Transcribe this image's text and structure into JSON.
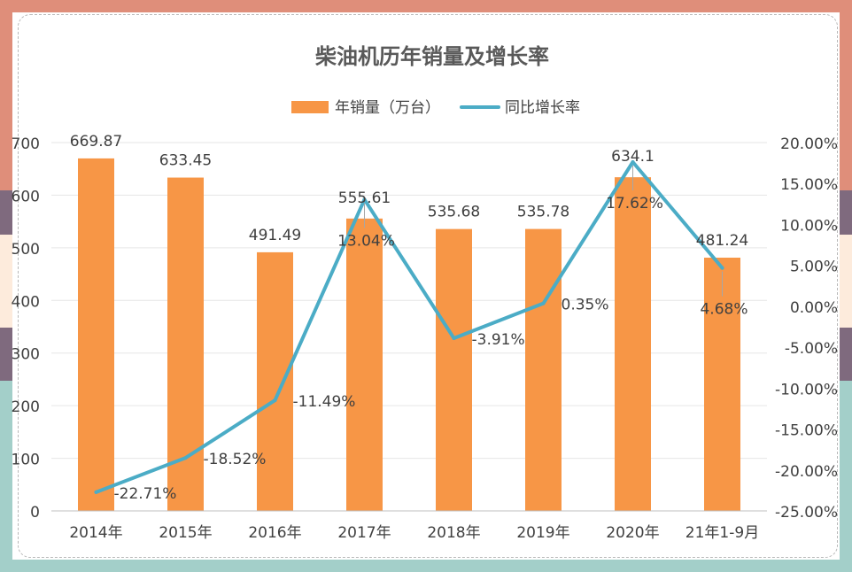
{
  "frame": {
    "top_color": "#DF8E7A",
    "bottom_color": "#A3CFC9",
    "side_colors": [
      "#DF8E7A",
      "#7F6A7E",
      "#FDEBDC",
      "#7F6A7E",
      "#A3CFC9"
    ]
  },
  "chart_data": {
    "type": "bar",
    "title": "柴油机历年销量及增长率",
    "categories": [
      "2014年",
      "2015年",
      "2016年",
      "2017年",
      "2018年",
      "2019年",
      "2020年",
      "21年1-9月"
    ],
    "series": [
      {
        "name": "年销量（万台）",
        "type": "bar",
        "axis": "left",
        "color": "#F79646",
        "values": [
          669.87,
          633.45,
          491.49,
          555.61,
          535.68,
          535.78,
          634.1,
          481.24
        ],
        "labels": [
          "669.87",
          "633.45",
          "491.49",
          "555.61",
          "535.68",
          "535.78",
          "634.1",
          "481.24"
        ]
      },
      {
        "name": "同比增长率",
        "type": "line",
        "axis": "right",
        "color": "#4BACC6",
        "values": [
          -22.71,
          -18.52,
          -11.49,
          13.04,
          -3.91,
          0.35,
          17.62,
          4.68
        ],
        "labels": [
          "-22.71%",
          "-18.52%",
          "-11.49%",
          "13.04%",
          "-3.91%",
          "0.35%",
          "17.62%",
          "4.68%"
        ]
      }
    ],
    "y_left": {
      "min": 0,
      "max": 700,
      "ticks": [
        "0",
        "100",
        "200",
        "300",
        "400",
        "500",
        "600",
        "700"
      ]
    },
    "y_right": {
      "min": -25,
      "max": 20,
      "ticks": [
        "-25.00%",
        "-20.00%",
        "-15.00%",
        "-10.00%",
        "-5.00%",
        "0.00%",
        "5.00%",
        "10.00%",
        "15.00%",
        "20.00%"
      ]
    },
    "grid": true,
    "legend_position": "top"
  }
}
